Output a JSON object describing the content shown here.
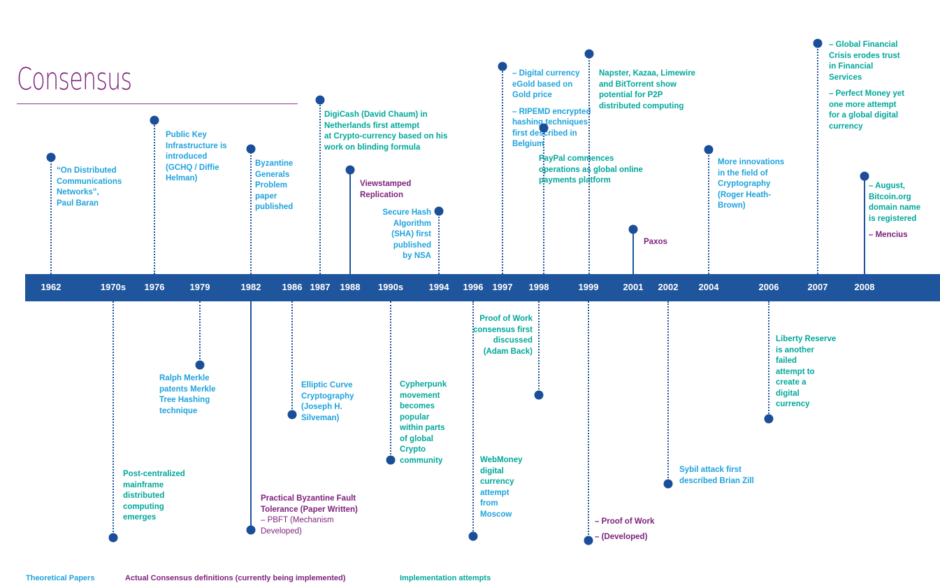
{
  "title": "Consensus",
  "colors": {
    "bar": "#1e559c",
    "marker": "#1a4e98",
    "theoretical": "#1fa3dc",
    "consensus": "#7d1f7c",
    "implementation": "#00a79b"
  },
  "years": [
    "1962",
    "1970s",
    "1976",
    "1979",
    "1982",
    "1986",
    "1987",
    "1988",
    "1990s",
    "1994",
    "1996",
    "1997",
    "1998",
    "1999",
    "2001",
    "2002",
    "2004",
    "2006",
    "2007",
    "2008"
  ],
  "events": [
    {
      "year": "1962",
      "lines": [
        "“On Distributed",
        "Communications",
        "Networks”,",
        "Paul Baran"
      ]
    },
    {
      "year": "1970s",
      "lines": [
        "Post-centralized",
        "mainframe",
        "distributed",
        "computing",
        "emerges"
      ]
    },
    {
      "year": "1976",
      "lines": [
        "Public Key",
        "Infrastructure is",
        "introduced",
        "(GCHQ / Diffie",
        "Helman)"
      ]
    },
    {
      "year": "1979",
      "lines": [
        "Ralph Merkle",
        "patents Merkle",
        "Tree Hashing",
        "technique"
      ]
    },
    {
      "year": "1982",
      "lines": [
        "Byzantine",
        "Generals",
        "Problem",
        "paper",
        "published"
      ]
    },
    {
      "year": "1982",
      "lines": [
        "Practical Byzantine Fault",
        "Tolerance (Paper Written)",
        "– PBFT (Mechanism",
        "Developed)"
      ]
    },
    {
      "year": "1986",
      "lines": [
        "Elliptic Curve",
        "Cryptography",
        "(Joseph H.",
        "Silveman)"
      ]
    },
    {
      "year": "1987",
      "lines": [
        "DigiCash (David Chaum) in",
        "Netherlands first attempt",
        "at Crypto-currency based on his",
        "work on blinding formula"
      ]
    },
    {
      "year": "1988",
      "lines": [
        "Viewstamped",
        "Replication"
      ]
    },
    {
      "year": "1990s",
      "lines": [
        "Cypherpunk",
        "movement",
        "becomes",
        "popular",
        "within parts",
        "of global",
        "Crypto",
        "community"
      ]
    },
    {
      "year": "1994",
      "lines": [
        "Secure Hash",
        "Algorithm",
        "(SHA) first",
        "published",
        "by NSA"
      ]
    },
    {
      "year": "1996",
      "lines": [
        "WebMoney",
        "digital",
        "currency",
        "attempt",
        "from",
        "Moscow"
      ]
    },
    {
      "year": "1996",
      "lines": [
        "– Digital currency",
        "eGold based on",
        "Gold price",
        "– RIPEMD encrypted",
        "hashing techniques",
        "first described in",
        "Belgium"
      ]
    },
    {
      "year": "1997",
      "lines": [
        "Proof of Work",
        "consensus first",
        "discussed",
        "(Adam Back)"
      ]
    },
    {
      "year": "1998",
      "lines": [
        "PayPal commences",
        "operations as global online",
        "payments platform"
      ]
    },
    {
      "year": "1999",
      "lines": [
        "Napster, Kazaa, Limewire",
        "and BitTorrent show",
        "potential for P2P",
        "distributed computing"
      ]
    },
    {
      "year": "1999",
      "lines": [
        "– Proof of Work",
        "– (Developed)"
      ]
    },
    {
      "year": "2001",
      "lines": [
        "Paxos"
      ]
    },
    {
      "year": "2002",
      "lines": [
        "Sybil attack first",
        "described Brian Zill"
      ]
    },
    {
      "year": "2004",
      "lines": [
        "More innovations",
        "in the field of",
        "Cryptography",
        "(Roger Heath-",
        "Brown)"
      ]
    },
    {
      "year": "2006",
      "lines": [
        "Liberty Reserve",
        "is another",
        "failed",
        "attempt to",
        "create a",
        "digital",
        "currency"
      ]
    },
    {
      "year": "2007",
      "lines": [
        "– Global Financial",
        "Crisis erodes trust",
        "in Financial",
        "Services",
        "– Perfect Money yet",
        "one more attempt",
        "for a global digital",
        "currency"
      ]
    },
    {
      "year": "2008",
      "lines": [
        "– August,",
        "Bitcoin.org",
        "domain name",
        "is registered",
        "– Mencius"
      ]
    }
  ],
  "legend": [
    "Theoretical Papers",
    "Actual Consensus definitions (currently being implemented)",
    "Implementation attempts"
  ]
}
